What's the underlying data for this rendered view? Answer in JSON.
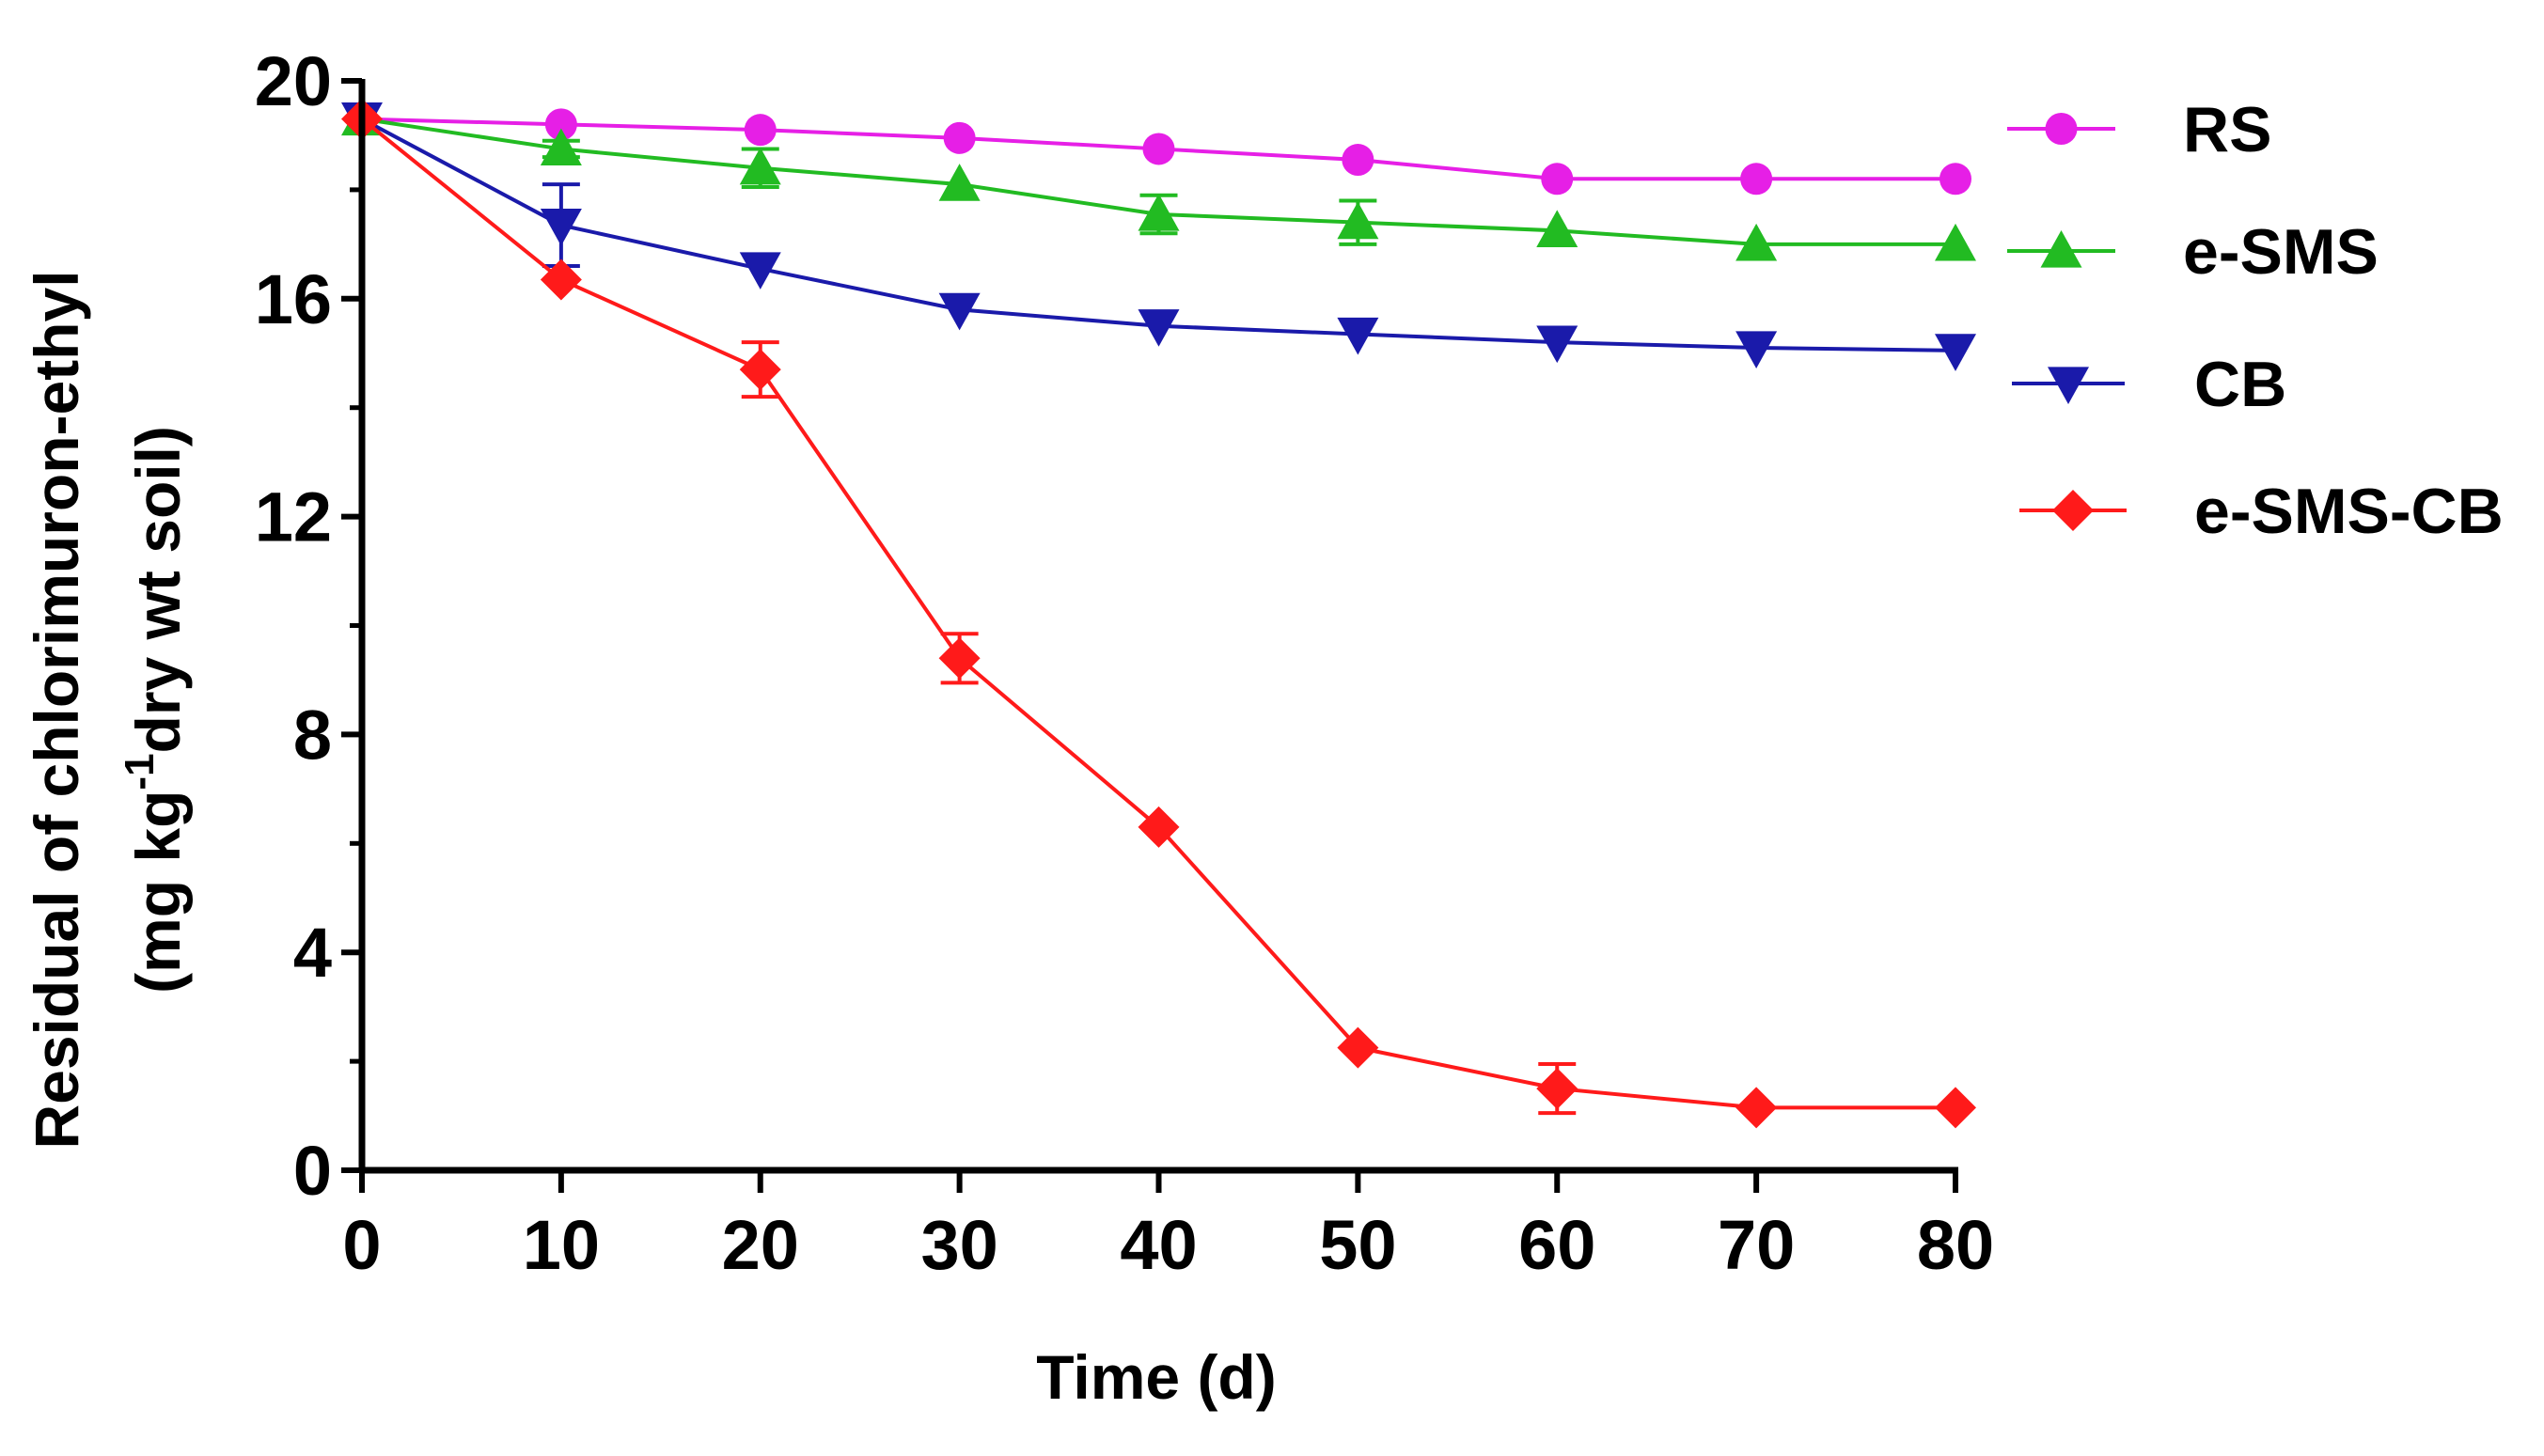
{
  "chart_data": {
    "type": "line",
    "title": "",
    "xlabel": "Time (d)",
    "ylabel": {
      "line1": "Residual of chlorimuron-ethyl",
      "line2_prefix": "(mg kg",
      "line2_sup": "-1",
      "line2_suffix": "dry  wt soil)"
    },
    "xlim": [
      0,
      80
    ],
    "ylim": [
      0,
      20
    ],
    "xticks": [
      "0",
      "10",
      "20",
      "30",
      "40",
      "50",
      "60",
      "70",
      "80"
    ],
    "yticks": [
      "0",
      "4",
      "8",
      "12",
      "16",
      "20"
    ],
    "grid": false,
    "legend_position": "right",
    "x": [
      0,
      10,
      20,
      30,
      40,
      50,
      60,
      70,
      80
    ],
    "series": [
      {
        "name": "RS",
        "color": "#e61fe6",
        "marker": "circle",
        "values": [
          19.3,
          19.2,
          19.1,
          18.95,
          18.75,
          18.55,
          18.2,
          18.2,
          18.2
        ],
        "errors": [
          0,
          0,
          0,
          0,
          0,
          0,
          0,
          0,
          0
        ]
      },
      {
        "name": "e-SMS",
        "color": "#22bb22",
        "marker": "triangle-up",
        "values": [
          19.3,
          18.75,
          18.4,
          18.1,
          17.55,
          17.4,
          17.25,
          17.0,
          17.0
        ],
        "errors": [
          0,
          0.15,
          0.35,
          0,
          0.35,
          0.4,
          0,
          0,
          0
        ]
      },
      {
        "name": "CB",
        "color": "#1a1aaa",
        "marker": "triangle-down",
        "values": [
          19.3,
          17.35,
          16.55,
          15.8,
          15.5,
          15.35,
          15.2,
          15.1,
          15.05
        ],
        "errors": [
          0,
          0.75,
          0,
          0,
          0,
          0,
          0,
          0,
          0
        ]
      },
      {
        "name": "e-SMS-CB",
        "color": "#ff1a1a",
        "marker": "diamond",
        "values": [
          19.3,
          16.35,
          14.7,
          9.4,
          6.3,
          2.25,
          1.5,
          1.15,
          1.15
        ],
        "errors": [
          0,
          0,
          0.5,
          0.45,
          0,
          0,
          0.45,
          0,
          0
        ]
      }
    ]
  }
}
